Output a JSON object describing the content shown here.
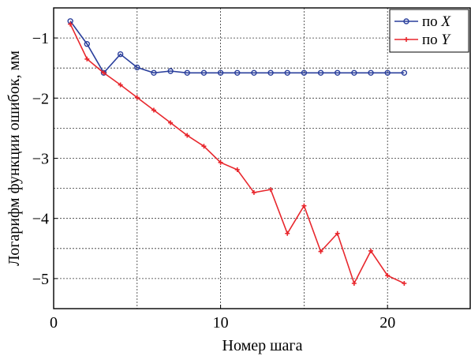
{
  "chart_data": {
    "type": "line",
    "xlabel": "Номер шага",
    "ylabel": "Логарифм функции ошибок, мм",
    "xlim": [
      0,
      25
    ],
    "ylim": [
      -5.5,
      -0.5
    ],
    "x_ticks": [
      0,
      10,
      20
    ],
    "x_ticks_grid": [
      5,
      10,
      15,
      20
    ],
    "y_ticks": [
      -1,
      -2,
      -3,
      -4,
      -5
    ],
    "y_ticks_grid": [
      -1,
      -1.5,
      -2,
      -2.5,
      -3,
      -3.5,
      -4,
      -4.5,
      -5
    ],
    "grid": true,
    "legend_position": "top-right",
    "x_tick_labels": [
      "0",
      "10",
      "20"
    ],
    "y_tick_labels": [
      "−1",
      "−2",
      "−3",
      "−4",
      "−5"
    ],
    "series": [
      {
        "name": "по X",
        "legend_prefix": "по ",
        "legend_var": "X",
        "color": "#2a3f9c",
        "marker": "circle",
        "x": [
          1,
          2,
          3,
          4,
          5,
          6,
          7,
          8,
          9,
          10,
          11,
          12,
          13,
          14,
          15,
          16,
          17,
          18,
          19,
          20,
          21
        ],
        "values": [
          -0.72,
          -1.1,
          -1.58,
          -1.27,
          -1.49,
          -1.58,
          -1.55,
          -1.58,
          -1.58,
          -1.58,
          -1.58,
          -1.58,
          -1.58,
          -1.58,
          -1.58,
          -1.58,
          -1.58,
          -1.58,
          -1.58,
          -1.58,
          -1.58
        ]
      },
      {
        "name": "по Y",
        "legend_prefix": "по ",
        "legend_var": "Y",
        "color": "#e8272d",
        "marker": "plus",
        "x": [
          1,
          2,
          3,
          4,
          5,
          6,
          7,
          8,
          9,
          10,
          11,
          12,
          13,
          14,
          15,
          16,
          17,
          18,
          19,
          20,
          21
        ],
        "values": [
          -0.77,
          -1.35,
          -1.58,
          -1.78,
          -1.99,
          -2.2,
          -2.41,
          -2.62,
          -2.8,
          -3.07,
          -3.19,
          -3.57,
          -3.52,
          -4.25,
          -3.79,
          -4.55,
          -4.25,
          -5.08,
          -4.54,
          -4.95,
          -5.08
        ]
      }
    ]
  }
}
